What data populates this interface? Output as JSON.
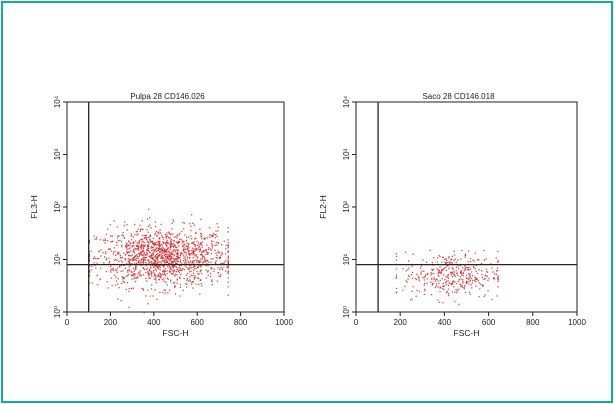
{
  "frame": {
    "border_color": "#17a89e"
  },
  "chart_data": [
    {
      "type": "scatter",
      "title": "Pulpa 28 CD146.026",
      "xlabel": "FSC-H",
      "ylabel": "FL3-H",
      "xlim": [
        0,
        1000
      ],
      "ylim_log10": [
        0,
        4
      ],
      "x_ticks": [
        0,
        200,
        400,
        600,
        800,
        1000
      ],
      "y_ticks_log10": [
        0,
        1,
        2,
        3,
        4
      ],
      "y_tick_labels": [
        "10⁰",
        "10¹",
        "10²",
        "10³",
        "10⁴"
      ],
      "gate": {
        "x": 100,
        "y": 8
      },
      "point_color": "#d42a2a",
      "cluster": {
        "count": 1400,
        "x_min": 100,
        "x_max": 740,
        "x_center": 440,
        "y_log_center": 1.05,
        "y_log_spread": 0.28,
        "y_log_min": 0.0,
        "y_log_max": 2.05
      }
    },
    {
      "type": "scatter",
      "title": "Saco 28 CD146.018",
      "xlabel": "FSC-H",
      "ylabel": "FL2-H",
      "xlim": [
        0,
        1000
      ],
      "ylim_log10": [
        0,
        4
      ],
      "x_ticks": [
        0,
        200,
        400,
        600,
        800,
        1000
      ],
      "y_ticks_log10": [
        0,
        1,
        2,
        3,
        4
      ],
      "y_tick_labels": [
        "10⁰",
        "10¹",
        "10²",
        "10³",
        "10⁴"
      ],
      "gate": {
        "x": 100,
        "y": 8
      },
      "point_color": "#d42a2a",
      "cluster": {
        "count": 380,
        "x_min": 180,
        "x_max": 640,
        "x_center": 430,
        "y_log_center": 0.72,
        "y_log_spread": 0.22,
        "y_log_min": 0.05,
        "y_log_max": 1.85
      }
    }
  ]
}
